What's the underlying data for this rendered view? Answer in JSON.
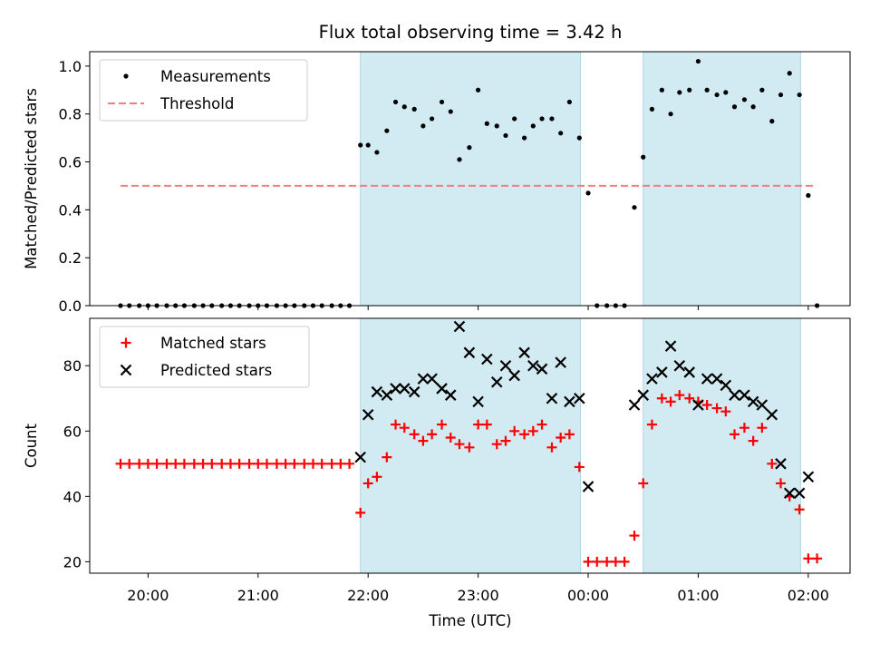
{
  "chart_data": {
    "title": "Flux total observing time = 3.42 h",
    "xlabel": "Time (UTC)",
    "x_ticks": [
      "20:00",
      "21:00",
      "22:00",
      "23:00",
      "00:00",
      "01:00",
      "02:00"
    ],
    "x_tick_hours": [
      20,
      21,
      22,
      23,
      24,
      25,
      26
    ],
    "x_range_hours": [
      19.47,
      26.38
    ],
    "observing_windows_hours": [
      [
        21.93,
        23.93
      ],
      [
        24.5,
        25.93
      ]
    ],
    "window_color": "#add8e6",
    "panels": [
      {
        "type": "scatter",
        "ylabel": "Matched/Predicted stars",
        "ylim": [
          0,
          1.06
        ],
        "y_ticks": [
          0.0,
          0.2,
          0.4,
          0.6,
          0.8,
          1.0
        ],
        "y_tick_labels": [
          "0.0",
          "0.2",
          "0.4",
          "0.6",
          "0.8",
          "1.0"
        ],
        "legend": [
          {
            "label": "Measurements",
            "marker": "dot",
            "color": "#000000"
          },
          {
            "label": "Threshold",
            "marker": "dashed-line",
            "color": "#f08080"
          }
        ],
        "threshold": {
          "value": 0.5,
          "x_range_hours": [
            19.75,
            26.05
          ],
          "color": "#f08080"
        },
        "series": [
          {
            "name": "Measurements",
            "marker": "dot",
            "color": "#000000",
            "points": [
              [
                19.75,
                0
              ],
              [
                19.83,
                0
              ],
              [
                19.92,
                0
              ],
              [
                20.0,
                0
              ],
              [
                20.08,
                0
              ],
              [
                20.17,
                0
              ],
              [
                20.25,
                0
              ],
              [
                20.33,
                0
              ],
              [
                20.42,
                0
              ],
              [
                20.5,
                0
              ],
              [
                20.58,
                0
              ],
              [
                20.67,
                0
              ],
              [
                20.75,
                0
              ],
              [
                20.83,
                0
              ],
              [
                20.92,
                0
              ],
              [
                21.0,
                0
              ],
              [
                21.08,
                0
              ],
              [
                21.17,
                0
              ],
              [
                21.25,
                0
              ],
              [
                21.33,
                0
              ],
              [
                21.42,
                0
              ],
              [
                21.5,
                0
              ],
              [
                21.58,
                0
              ],
              [
                21.67,
                0
              ],
              [
                21.75,
                0
              ],
              [
                21.83,
                0
              ],
              [
                21.93,
                0.67
              ],
              [
                22.0,
                0.67
              ],
              [
                22.08,
                0.64
              ],
              [
                22.17,
                0.73
              ],
              [
                22.25,
                0.85
              ],
              [
                22.33,
                0.83
              ],
              [
                22.42,
                0.82
              ],
              [
                22.5,
                0.75
              ],
              [
                22.58,
                0.78
              ],
              [
                22.67,
                0.85
              ],
              [
                22.75,
                0.81
              ],
              [
                22.83,
                0.61
              ],
              [
                22.92,
                0.66
              ],
              [
                23.0,
                0.9
              ],
              [
                23.08,
                0.76
              ],
              [
                23.17,
                0.75
              ],
              [
                23.25,
                0.71
              ],
              [
                23.33,
                0.78
              ],
              [
                23.42,
                0.7
              ],
              [
                23.5,
                0.75
              ],
              [
                23.58,
                0.78
              ],
              [
                23.67,
                0.78
              ],
              [
                23.75,
                0.72
              ],
              [
                23.83,
                0.85
              ],
              [
                23.92,
                0.7
              ],
              [
                24.0,
                0.47
              ],
              [
                24.08,
                0
              ],
              [
                24.17,
                0
              ],
              [
                24.25,
                0
              ],
              [
                24.33,
                0
              ],
              [
                24.42,
                0.41
              ],
              [
                24.5,
                0.62
              ],
              [
                24.58,
                0.82
              ],
              [
                24.67,
                0.9
              ],
              [
                24.75,
                0.8
              ],
              [
                24.83,
                0.89
              ],
              [
                24.92,
                0.9
              ],
              [
                25.0,
                1.02
              ],
              [
                25.08,
                0.9
              ],
              [
                25.17,
                0.88
              ],
              [
                25.25,
                0.89
              ],
              [
                25.33,
                0.83
              ],
              [
                25.42,
                0.86
              ],
              [
                25.5,
                0.83
              ],
              [
                25.58,
                0.9
              ],
              [
                25.67,
                0.77
              ],
              [
                25.75,
                0.88
              ],
              [
                25.83,
                0.97
              ],
              [
                25.92,
                0.88
              ],
              [
                26.0,
                0.46
              ],
              [
                26.08,
                0
              ]
            ]
          }
        ]
      },
      {
        "type": "scatter",
        "ylabel": "Count",
        "ylim": [
          16.5,
          94.5
        ],
        "y_ticks": [
          20,
          40,
          60,
          80
        ],
        "y_tick_labels": [
          "20",
          "40",
          "60",
          "80"
        ],
        "legend": [
          {
            "label": "Matched stars",
            "marker": "plus",
            "color": "#ff0000"
          },
          {
            "label": "Predicted stars",
            "marker": "x",
            "color": "#000000"
          }
        ],
        "series": [
          {
            "name": "Matched stars",
            "marker": "plus",
            "color": "#ff0000",
            "points": [
              [
                19.75,
                50
              ],
              [
                19.83,
                50
              ],
              [
                19.92,
                50
              ],
              [
                20.0,
                50
              ],
              [
                20.08,
                50
              ],
              [
                20.17,
                50
              ],
              [
                20.25,
                50
              ],
              [
                20.33,
                50
              ],
              [
                20.42,
                50
              ],
              [
                20.5,
                50
              ],
              [
                20.58,
                50
              ],
              [
                20.67,
                50
              ],
              [
                20.75,
                50
              ],
              [
                20.83,
                50
              ],
              [
                20.92,
                50
              ],
              [
                21.0,
                50
              ],
              [
                21.08,
                50
              ],
              [
                21.17,
                50
              ],
              [
                21.25,
                50
              ],
              [
                21.33,
                50
              ],
              [
                21.42,
                50
              ],
              [
                21.5,
                50
              ],
              [
                21.58,
                50
              ],
              [
                21.67,
                50
              ],
              [
                21.75,
                50
              ],
              [
                21.83,
                50
              ],
              [
                21.93,
                35
              ],
              [
                22.0,
                44
              ],
              [
                22.08,
                46
              ],
              [
                22.17,
                52
              ],
              [
                22.25,
                62
              ],
              [
                22.33,
                61
              ],
              [
                22.42,
                59
              ],
              [
                22.5,
                57
              ],
              [
                22.58,
                59
              ],
              [
                22.67,
                62
              ],
              [
                22.75,
                58
              ],
              [
                22.83,
                56
              ],
              [
                22.92,
                55
              ],
              [
                23.0,
                62
              ],
              [
                23.08,
                62
              ],
              [
                23.17,
                56
              ],
              [
                23.25,
                57
              ],
              [
                23.33,
                60
              ],
              [
                23.42,
                59
              ],
              [
                23.5,
                60
              ],
              [
                23.58,
                62
              ],
              [
                23.67,
                55
              ],
              [
                23.75,
                58
              ],
              [
                23.83,
                59
              ],
              [
                23.92,
                49
              ],
              [
                24.0,
                20
              ],
              [
                24.08,
                20
              ],
              [
                24.17,
                20
              ],
              [
                24.25,
                20
              ],
              [
                24.33,
                20
              ],
              [
                24.42,
                28
              ],
              [
                24.5,
                44
              ],
              [
                24.58,
                62
              ],
              [
                24.67,
                70
              ],
              [
                24.75,
                69
              ],
              [
                24.83,
                71
              ],
              [
                24.92,
                70
              ],
              [
                25.0,
                69
              ],
              [
                25.08,
                68
              ],
              [
                25.17,
                67
              ],
              [
                25.25,
                66
              ],
              [
                25.33,
                59
              ],
              [
                25.42,
                61
              ],
              [
                25.5,
                57
              ],
              [
                25.58,
                61
              ],
              [
                25.67,
                50
              ],
              [
                25.75,
                44
              ],
              [
                25.83,
                40
              ],
              [
                25.92,
                36
              ],
              [
                26.0,
                21
              ],
              [
                26.08,
                21
              ]
            ]
          },
          {
            "name": "Predicted stars",
            "marker": "x",
            "color": "#000000",
            "points": [
              [
                21.93,
                52
              ],
              [
                22.0,
                65
              ],
              [
                22.08,
                72
              ],
              [
                22.17,
                71
              ],
              [
                22.25,
                73
              ],
              [
                22.33,
                73
              ],
              [
                22.42,
                72
              ],
              [
                22.5,
                76
              ],
              [
                22.58,
                76
              ],
              [
                22.67,
                73
              ],
              [
                22.75,
                71
              ],
              [
                22.83,
                92
              ],
              [
                22.92,
                84
              ],
              [
                23.0,
                69
              ],
              [
                23.08,
                82
              ],
              [
                23.17,
                75
              ],
              [
                23.25,
                80
              ],
              [
                23.33,
                77
              ],
              [
                23.42,
                84
              ],
              [
                23.5,
                80
              ],
              [
                23.58,
                79
              ],
              [
                23.67,
                70
              ],
              [
                23.75,
                81
              ],
              [
                23.83,
                69
              ],
              [
                23.92,
                70
              ],
              [
                24.0,
                43
              ],
              [
                24.42,
                68
              ],
              [
                24.5,
                71
              ],
              [
                24.58,
                76
              ],
              [
                24.67,
                78
              ],
              [
                24.75,
                86
              ],
              [
                24.83,
                80
              ],
              [
                24.92,
                78
              ],
              [
                25.0,
                68
              ],
              [
                25.08,
                76
              ],
              [
                25.17,
                76
              ],
              [
                25.25,
                74
              ],
              [
                25.33,
                71
              ],
              [
                25.42,
                71
              ],
              [
                25.5,
                69
              ],
              [
                25.58,
                68
              ],
              [
                25.67,
                65
              ],
              [
                25.75,
                50
              ],
              [
                25.83,
                41
              ],
              [
                25.92,
                41
              ],
              [
                26.0,
                46
              ]
            ]
          }
        ]
      }
    ]
  }
}
